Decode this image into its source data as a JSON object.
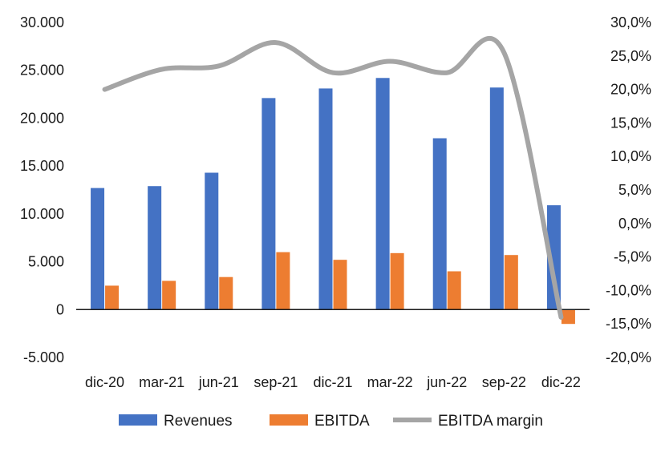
{
  "chart_data": {
    "type": "bar",
    "categories": [
      "dic-20",
      "mar-21",
      "jun-21",
      "sep-21",
      "dic-21",
      "mar-22",
      "jun-22",
      "sep-22",
      "dic-22"
    ],
    "series": [
      {
        "name": "Revenues",
        "type": "bar",
        "axis": "left",
        "color": "#4472C4",
        "values": [
          12700,
          12900,
          14300,
          22100,
          23100,
          24200,
          17900,
          23200,
          10900
        ]
      },
      {
        "name": "EBITDA",
        "type": "bar",
        "axis": "left",
        "color": "#ED7D31",
        "values": [
          2500,
          3000,
          3400,
          6000,
          5200,
          5900,
          4000,
          5700,
          -1500
        ]
      },
      {
        "name": "EBITDA margin",
        "type": "line",
        "smooth": true,
        "axis": "right",
        "color": "#A5A5A5",
        "values": [
          20.0,
          23.0,
          23.5,
          27.0,
          22.5,
          24.2,
          22.5,
          25.5,
          -14.0
        ]
      }
    ],
    "yleft": {
      "min": -5000,
      "max": 30000,
      "step": 5000,
      "ticks": [
        "30.000",
        "25.000",
        "20.000",
        "15.000",
        "10.000",
        "5.000",
        "0",
        "-5.000"
      ]
    },
    "yright": {
      "min": -20,
      "max": 30,
      "step": 5,
      "ticks": [
        "30,0%",
        "25,0%",
        "20,0%",
        "15,0%",
        "10,0%",
        "5,0%",
        "0,0%",
        "-5,0%",
        "-10,0%",
        "-15,0%",
        "-20,0%"
      ]
    },
    "grid": false,
    "legend": "bottom"
  }
}
